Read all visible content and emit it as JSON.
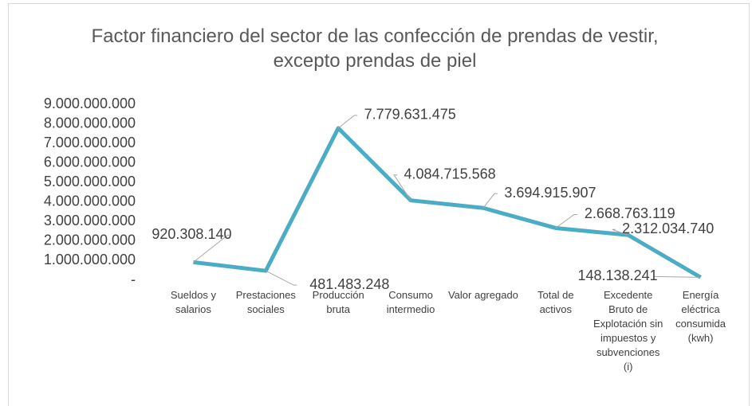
{
  "chart_data": {
    "type": "line",
    "title": "Factor financiero del sector de las confección de prendas de vestir, excepto prendas de piel",
    "categories": [
      "Sueldos y salarios",
      "Prestaciones sociales",
      "Producción bruta",
      "Consumo intermedio",
      "Valor agregado",
      "Total de activos",
      "Excedente Bruto de Explotación sin impuestos y subvenciones (i)",
      "Energía eléctrica consumida (kwh)"
    ],
    "series": [
      {
        "name": "Factor financiero",
        "color": "#4bacc6",
        "values": [
          920308140,
          481483248,
          7779631475,
          4084715568,
          3694915907,
          2668763119,
          2312034740,
          148138241
        ],
        "value_labels": [
          "920.308.140",
          "481.483.248",
          "7.779.631.475",
          "4.084.715.568",
          "3.694.915.907",
          "2.668.763.119",
          "2.312.034.740",
          "148.138.241"
        ]
      }
    ],
    "ylim": [
      0,
      9000000000
    ],
    "yticks": [
      {
        "value": 0,
        "label": "-"
      },
      {
        "value": 1000000000,
        "label": "1.000.000.000"
      },
      {
        "value": 2000000000,
        "label": "2.000.000.000"
      },
      {
        "value": 3000000000,
        "label": "3.000.000.000"
      },
      {
        "value": 4000000000,
        "label": "4.000.000.000"
      },
      {
        "value": 5000000000,
        "label": "5.000.000.000"
      },
      {
        "value": 6000000000,
        "label": "6.000.000.000"
      },
      {
        "value": 7000000000,
        "label": "7.000.000.000"
      },
      {
        "value": 8000000000,
        "label": "8.000.000.000"
      },
      {
        "value": 9000000000,
        "label": "9.000.000.000"
      }
    ]
  }
}
